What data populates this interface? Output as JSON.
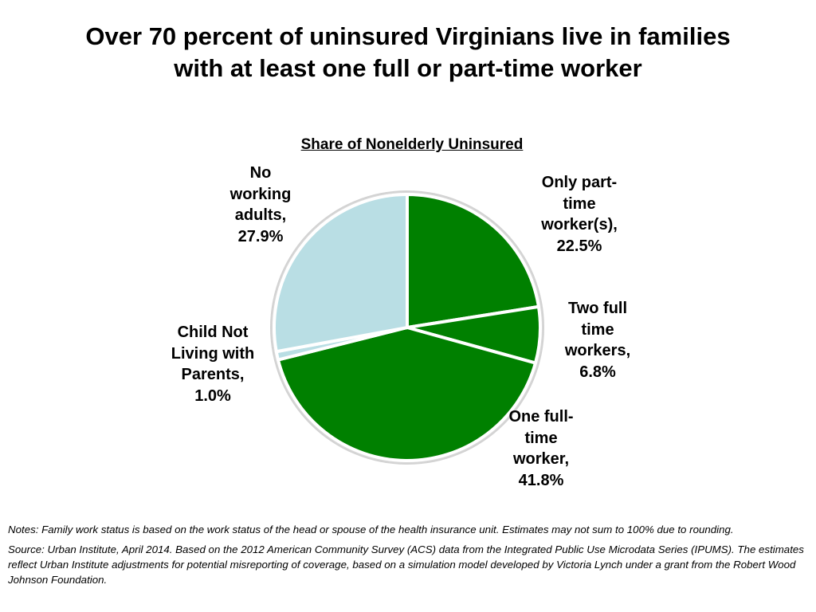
{
  "slide": {
    "title_lines": [
      "Over 70 percent of uninsured Virginians live in families",
      "with at least one full or part-time worker"
    ],
    "notes": "Notes: Family work status is based on the work status of the head or spouse of the health insurance unit. Estimates may not sum to 100% due to rounding.",
    "source": "Source: Urban Institute, April 2014. Based on the 2012 American Community Survey (ACS) data from the Integrated Public Use Microdata Series (IPUMS). The estimates reflect Urban Institute adjustments for potential misreporting of coverage, based on a simulation model developed by Victoria Lynch under a grant from the Robert Wood Johnson Foundation."
  },
  "chart_data": {
    "type": "pie",
    "title": "Share of Nonelderly Uninsured",
    "unit": "%",
    "slices": [
      {
        "label": "Only part-time worker(s)",
        "label_lines": [
          "Only part-",
          "time",
          "worker(s),",
          "22.5%"
        ],
        "value": 22.5,
        "color": "#008000"
      },
      {
        "label": "Two full time workers",
        "label_lines": [
          "Two full",
          "time",
          "workers,",
          "6.8%"
        ],
        "value": 6.8,
        "color": "#008000"
      },
      {
        "label": "One full-time worker",
        "label_lines": [
          "One full-",
          "time",
          "worker,",
          "41.8%"
        ],
        "value": 41.8,
        "color": "#008000"
      },
      {
        "label": "Child Not Living with Parents",
        "label_lines": [
          "Child Not",
          "Living with",
          "Parents,",
          "1.0%"
        ],
        "value": 1.0,
        "color": "#B9DEE4"
      },
      {
        "label": "No working adults",
        "label_lines": [
          "No",
          "working",
          "adults,",
          "27.9%"
        ],
        "value": 27.9,
        "color": "#B9DEE4"
      }
    ],
    "legend": "none",
    "start_angle": "12 o'clock",
    "direction": "clockwise"
  }
}
